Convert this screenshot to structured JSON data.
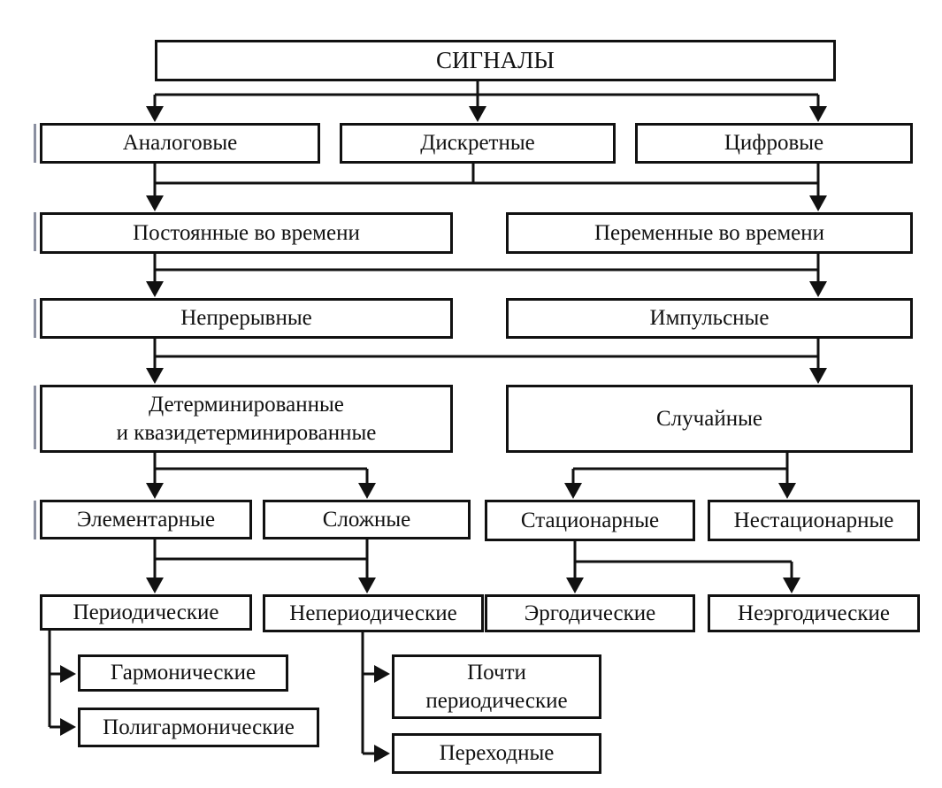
{
  "nodes": {
    "signals": "СИГНАЛЫ",
    "analog": "Аналоговые",
    "discrete": "Дискретные",
    "digital": "Цифровые",
    "constant_time": "Постоянные во времени",
    "variable_time": "Переменные во времени",
    "continuous": "Непрерывные",
    "pulse": "Импульсные",
    "deterministic": "Детерминированные\nи квазидетерминированные",
    "random": "Случайные",
    "elementary": "Элементарные",
    "complex": "Сложные",
    "stationary": "Стационарные",
    "nonstationary": "Нестационарные",
    "periodic": "Периодические",
    "nonperiodic": "Непериодические",
    "ergodic": "Эргодические",
    "nonergodic": "Неэргодические",
    "harmonic": "Гармонические",
    "polyharmonic": "Полигармонические",
    "almost_periodic": "Почти\nпериодические",
    "transient": "Переходные"
  }
}
